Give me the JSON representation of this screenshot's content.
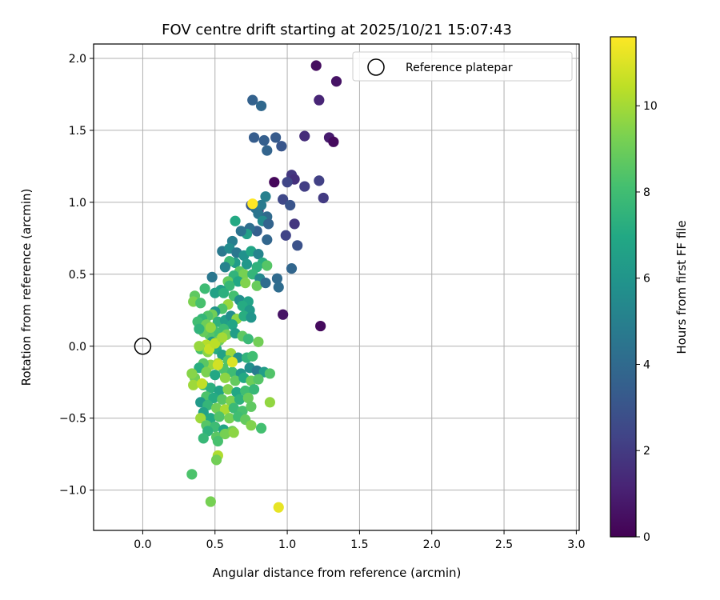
{
  "chart_data": {
    "type": "scatter",
    "title": "FOV centre drift starting at 2025/10/21 15:07:43",
    "xlabel": "Angular distance from reference (arcmin)",
    "ylabel": "Rotation from reference (arcmin)",
    "xlim": [
      -0.34,
      3.02
    ],
    "ylim": [
      -1.28,
      2.1
    ],
    "x_ticks": [
      0.0,
      0.5,
      1.0,
      1.5,
      2.0,
      2.5,
      3.0
    ],
    "x_tick_labels": [
      "0.0",
      "0.5",
      "1.0",
      "1.5",
      "2.0",
      "2.5",
      "3.0"
    ],
    "y_ticks": [
      -1.0,
      -0.5,
      0.0,
      0.5,
      1.0,
      1.5,
      2.0
    ],
    "y_tick_labels": [
      "−1.0",
      "−0.5",
      "0.0",
      "0.5",
      "1.0",
      "1.5",
      "2.0"
    ],
    "grid": true,
    "colormap": "viridis",
    "colorbar": {
      "label": "Hours from first FF file",
      "range": [
        0,
        11.6
      ],
      "ticks": [
        0,
        2,
        4,
        6,
        8,
        10
      ],
      "tick_labels": [
        "0",
        "2",
        "4",
        "6",
        "8",
        "10"
      ]
    },
    "legend": {
      "position": "top-right",
      "entries": [
        "Reference platepar"
      ]
    },
    "reference": {
      "name": "Reference platepar",
      "x": 0.0,
      "y": 0.0
    },
    "points": [
      [
        1.2,
        1.95,
        0.4
      ],
      [
        1.34,
        1.84,
        0.6
      ],
      [
        1.22,
        1.71,
        1.2
      ],
      [
        1.29,
        1.45,
        0.9
      ],
      [
        1.32,
        1.42,
        0.3
      ],
      [
        1.12,
        1.46,
        1.5
      ],
      [
        0.76,
        1.71,
        3.6
      ],
      [
        0.82,
        1.67,
        3.9
      ],
      [
        0.77,
        1.45,
        3.4
      ],
      [
        0.84,
        1.43,
        3.5
      ],
      [
        0.92,
        1.45,
        3.3
      ],
      [
        0.96,
        1.39,
        3.1
      ],
      [
        0.86,
        1.36,
        3.7
      ],
      [
        0.91,
        1.14,
        0.2
      ],
      [
        1.03,
        1.19,
        1.9
      ],
      [
        1.05,
        1.16,
        1.6
      ],
      [
        1.0,
        1.14,
        2.4
      ],
      [
        1.22,
        1.15,
        2.2
      ],
      [
        1.12,
        1.11,
        2.1
      ],
      [
        1.25,
        1.03,
        2.0
      ],
      [
        0.97,
        1.02,
        2.5
      ],
      [
        1.02,
        0.98,
        3.0
      ],
      [
        0.8,
        0.94,
        0.5
      ],
      [
        1.05,
        0.85,
        1.8
      ],
      [
        0.99,
        0.77,
        2.3
      ],
      [
        1.07,
        0.7,
        2.9
      ],
      [
        1.03,
        0.54,
        3.8
      ],
      [
        0.93,
        0.47,
        4.0
      ],
      [
        0.94,
        0.41,
        4.1
      ],
      [
        0.97,
        0.22,
        0.6
      ],
      [
        1.23,
        0.14,
        0.3
      ],
      [
        0.75,
        0.98,
        3.2
      ],
      [
        0.78,
        0.96,
        4.3
      ],
      [
        0.85,
        1.04,
        5.0
      ],
      [
        0.82,
        0.98,
        4.8
      ],
      [
        0.8,
        0.92,
        4.5
      ],
      [
        0.86,
        0.9,
        4.0
      ],
      [
        0.83,
        0.87,
        5.5
      ],
      [
        0.87,
        0.85,
        3.7
      ],
      [
        0.79,
        0.8,
        3.5
      ],
      [
        0.74,
        0.82,
        4.2
      ],
      [
        0.72,
        0.78,
        6.5
      ],
      [
        0.68,
        0.8,
        4.4
      ],
      [
        0.64,
        0.87,
        7.0
      ],
      [
        0.86,
        0.74,
        3.8
      ],
      [
        0.62,
        0.73,
        4.9
      ],
      [
        0.55,
        0.66,
        4.7
      ],
      [
        0.6,
        0.68,
        5.5
      ],
      [
        0.65,
        0.65,
        4.6
      ],
      [
        0.7,
        0.63,
        5.8
      ],
      [
        0.75,
        0.66,
        6.8
      ],
      [
        0.8,
        0.64,
        5.2
      ],
      [
        0.83,
        0.58,
        7.2
      ],
      [
        0.86,
        0.56,
        8.5
      ],
      [
        0.79,
        0.55,
        7.4
      ],
      [
        0.72,
        0.57,
        6.1
      ],
      [
        0.64,
        0.58,
        6.3
      ],
      [
        0.6,
        0.59,
        7.8
      ],
      [
        0.57,
        0.55,
        5.1
      ],
      [
        0.67,
        0.52,
        8.6
      ],
      [
        0.63,
        0.49,
        7.5
      ],
      [
        0.7,
        0.5,
        9.2
      ],
      [
        0.76,
        0.5,
        7.6
      ],
      [
        0.81,
        0.47,
        5.4
      ],
      [
        0.59,
        0.45,
        8.8
      ],
      [
        0.66,
        0.45,
        6.9
      ],
      [
        0.71,
        0.44,
        9.4
      ],
      [
        0.79,
        0.42,
        8.9
      ],
      [
        0.85,
        0.44,
        4.1
      ],
      [
        0.48,
        0.48,
        4.6
      ],
      [
        0.6,
        0.42,
        7.7
      ],
      [
        0.54,
        0.39,
        6.4
      ],
      [
        0.5,
        0.37,
        6.6
      ],
      [
        0.43,
        0.4,
        7.9
      ],
      [
        0.36,
        0.35,
        8.7
      ],
      [
        0.35,
        0.31,
        9.3
      ],
      [
        0.4,
        0.3,
        8.2
      ],
      [
        0.56,
        0.37,
        7.3
      ],
      [
        0.63,
        0.35,
        8.1
      ],
      [
        0.67,
        0.32,
        5.7
      ],
      [
        0.73,
        0.31,
        6.7
      ],
      [
        0.69,
        0.28,
        7.1
      ],
      [
        0.74,
        0.25,
        6.2
      ],
      [
        0.59,
        0.29,
        9.8
      ],
      [
        0.55,
        0.26,
        8.3
      ],
      [
        0.5,
        0.24,
        5.9
      ],
      [
        0.48,
        0.22,
        9.1
      ],
      [
        0.45,
        0.21,
        8.4
      ],
      [
        0.41,
        0.19,
        7.6
      ],
      [
        0.38,
        0.17,
        8.0
      ],
      [
        0.44,
        0.15,
        9.0
      ],
      [
        0.52,
        0.17,
        7.4
      ],
      [
        0.57,
        0.18,
        6.5
      ],
      [
        0.61,
        0.21,
        5.6
      ],
      [
        0.65,
        0.19,
        9.6
      ],
      [
        0.7,
        0.21,
        7.2
      ],
      [
        0.75,
        0.2,
        6.0
      ],
      [
        0.62,
        0.15,
        6.8
      ],
      [
        0.56,
        0.12,
        7.9
      ],
      [
        0.5,
        0.1,
        8.1
      ],
      [
        0.46,
        0.08,
        8.5
      ],
      [
        0.42,
        0.1,
        8.9
      ],
      [
        0.39,
        0.12,
        7.5
      ],
      [
        0.58,
        0.08,
        9.2
      ],
      [
        0.64,
        0.09,
        6.4
      ],
      [
        0.69,
        0.07,
        8.7
      ],
      [
        0.73,
        0.05,
        7.8
      ],
      [
        0.53,
        0.04,
        9.0
      ],
      [
        0.48,
        0.03,
        6.3
      ],
      [
        0.44,
        0.01,
        10.3
      ],
      [
        0.4,
        -0.02,
        8.2
      ],
      [
        0.45,
        -0.04,
        9.5
      ],
      [
        0.51,
        -0.02,
        7.1
      ],
      [
        0.55,
        -0.06,
        6.6
      ],
      [
        0.61,
        -0.05,
        9.9
      ],
      [
        0.66,
        -0.08,
        5.8
      ],
      [
        0.72,
        -0.08,
        7.5
      ],
      [
        0.76,
        -0.07,
        8.0
      ],
      [
        0.8,
        0.03,
        9.1
      ],
      [
        0.59,
        -0.1,
        8.4
      ],
      [
        0.52,
        -0.12,
        10.2
      ],
      [
        0.47,
        -0.13,
        9.7
      ],
      [
        0.42,
        -0.12,
        8.6
      ],
      [
        0.39,
        -0.15,
        7.2
      ],
      [
        0.44,
        -0.18,
        9.3
      ],
      [
        0.5,
        -0.2,
        6.9
      ],
      [
        0.56,
        -0.16,
        8.3
      ],
      [
        0.62,
        -0.18,
        7.9
      ],
      [
        0.68,
        -0.19,
        6.1
      ],
      [
        0.74,
        -0.15,
        5.7
      ],
      [
        0.79,
        -0.17,
        4.8
      ],
      [
        0.84,
        -0.18,
        6.4
      ],
      [
        0.88,
        -0.19,
        8.4
      ],
      [
        0.57,
        -0.22,
        9.6
      ],
      [
        0.64,
        -0.24,
        8.8
      ],
      [
        0.7,
        -0.22,
        7.0
      ],
      [
        0.75,
        -0.24,
        9.0
      ],
      [
        0.8,
        -0.23,
        8.5
      ],
      [
        0.36,
        -0.22,
        9.1
      ],
      [
        0.34,
        -0.19,
        9.5
      ],
      [
        0.35,
        -0.27,
        9.9
      ],
      [
        0.42,
        -0.27,
        8.1
      ],
      [
        0.47,
        -0.29,
        7.3
      ],
      [
        0.53,
        -0.31,
        6.7
      ],
      [
        0.59,
        -0.3,
        9.4
      ],
      [
        0.65,
        -0.32,
        6.9
      ],
      [
        0.71,
        -0.31,
        8.0
      ],
      [
        0.77,
        -0.3,
        7.7
      ],
      [
        0.44,
        -0.35,
        8.3
      ],
      [
        0.49,
        -0.36,
        7.1
      ],
      [
        0.55,
        -0.37,
        8.6
      ],
      [
        0.61,
        -0.38,
        9.3
      ],
      [
        0.67,
        -0.37,
        7.4
      ],
      [
        0.73,
        -0.36,
        8.9
      ],
      [
        0.4,
        -0.39,
        6.2
      ],
      [
        0.45,
        -0.41,
        7.6
      ],
      [
        0.51,
        -0.43,
        9.1
      ],
      [
        0.57,
        -0.44,
        10.1
      ],
      [
        0.63,
        -0.43,
        7.8
      ],
      [
        0.69,
        -0.45,
        8.2
      ],
      [
        0.88,
        -0.39,
        9.7
      ],
      [
        0.75,
        -0.42,
        8.7
      ],
      [
        0.42,
        -0.46,
        6.6
      ],
      [
        0.47,
        -0.5,
        7.0
      ],
      [
        0.53,
        -0.49,
        8.4
      ],
      [
        0.6,
        -0.5,
        9.2
      ],
      [
        0.66,
        -0.49,
        8.0
      ],
      [
        0.71,
        -0.51,
        8.8
      ],
      [
        0.4,
        -0.5,
        9.9
      ],
      [
        0.44,
        -0.55,
        8.5
      ],
      [
        0.5,
        -0.56,
        7.9
      ],
      [
        0.56,
        -0.58,
        6.8
      ],
      [
        0.62,
        -0.59,
        9.0
      ],
      [
        0.75,
        -0.55,
        9.4
      ],
      [
        0.82,
        -0.57,
        8.1
      ],
      [
        0.45,
        -0.59,
        7.4
      ],
      [
        0.51,
        -0.63,
        8.6
      ],
      [
        0.42,
        -0.64,
        7.7
      ],
      [
        0.57,
        -0.61,
        9.2
      ],
      [
        0.63,
        -0.6,
        9.6
      ],
      [
        0.52,
        -0.66,
        8.2
      ],
      [
        0.52,
        -0.76,
        10.2
      ],
      [
        0.51,
        -0.79,
        9.1
      ],
      [
        0.34,
        -0.89,
        8.3
      ],
      [
        0.47,
        -1.08,
        9.2
      ],
      [
        0.94,
        -1.12,
        11.2
      ],
      [
        0.76,
        0.99,
        11.6
      ],
      [
        0.62,
        -0.11,
        11.0
      ],
      [
        0.52,
        -0.13,
        10.8
      ],
      [
        0.46,
        -0.02,
        10.6
      ],
      [
        0.5,
        0.02,
        10.4
      ],
      [
        0.55,
        0.06,
        10.0
      ],
      [
        0.41,
        -0.26,
        10.5
      ],
      [
        0.39,
        0.0,
        9.8
      ],
      [
        0.47,
        0.13,
        9.7
      ]
    ]
  }
}
